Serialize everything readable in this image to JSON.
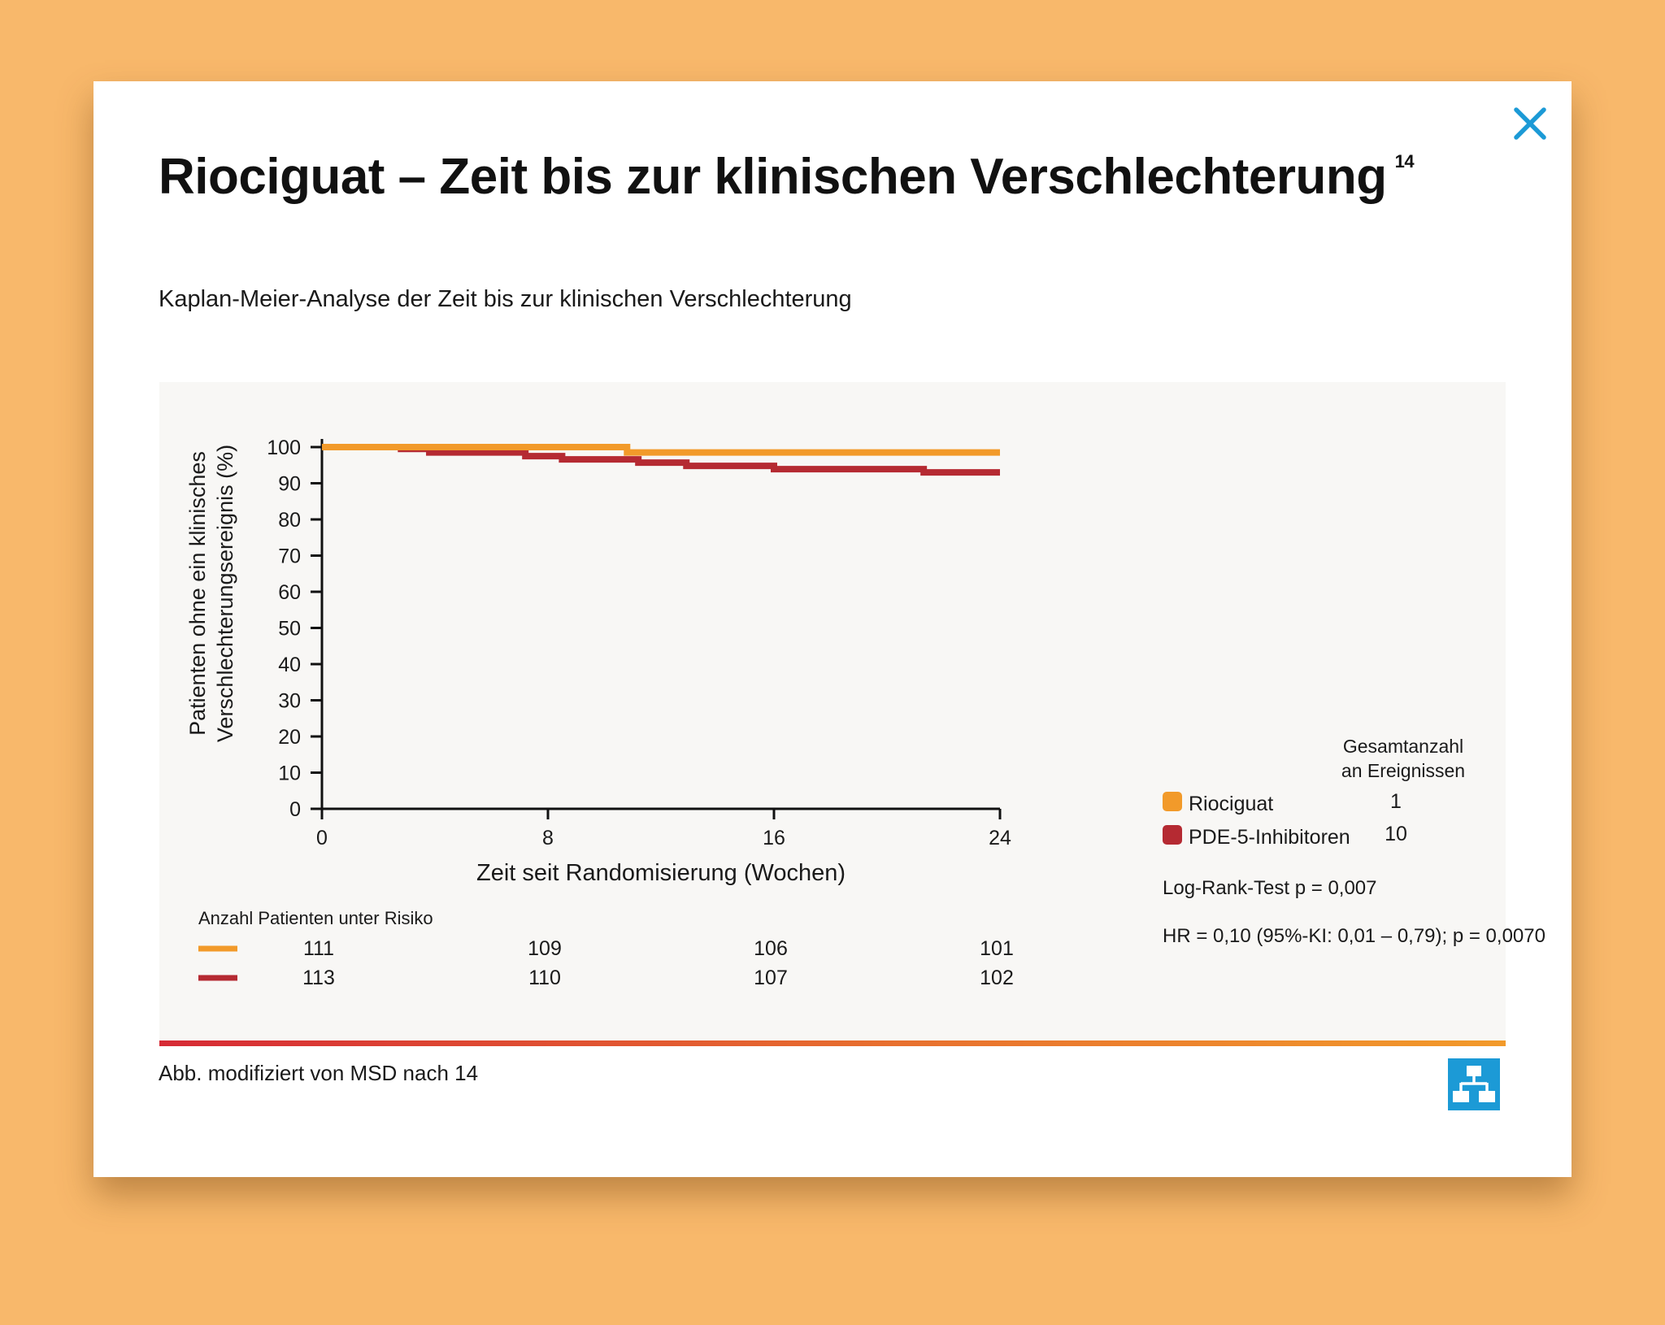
{
  "modal": {
    "title": "Riociguat – Zeit bis zur klinischen Verschlechterung",
    "title_superscript": "14",
    "subtitle": "Kaplan-Meier-Analyse der Zeit bis zur klinischen Verschlechterung",
    "footnote": "Abb. modifiziert von MSD nach 14",
    "close_icon": "close-icon",
    "sitemap_icon": "sitemap-icon"
  },
  "colors": {
    "background": "#f8b86b",
    "accent": "#1c9ad6",
    "riociguat": "#f29a2a",
    "pde5": "#b52a32"
  },
  "chart_data": {
    "type": "line",
    "step": true,
    "xlabel": "Zeit seit Randomisierung (Wochen)",
    "ylabel_lines": [
      "Patienten ohne ein klinisches",
      "Verschlechterungsereignis (%)"
    ],
    "xlim": [
      0,
      24
    ],
    "ylim": [
      0,
      100
    ],
    "xticks": [
      "0",
      "8",
      "16",
      "24"
    ],
    "yticks": [
      "0",
      "10",
      "20",
      "30",
      "40",
      "50",
      "60",
      "70",
      "80",
      "90",
      "100"
    ],
    "legend_header_lines": [
      "Gesamtanzahl",
      "an Ereignissen"
    ],
    "series": [
      {
        "name": "Riociguat",
        "events": "1",
        "color": "#f29a2a",
        "x": [
          0,
          10.8,
          24
        ],
        "y": [
          100,
          98.5,
          98.5
        ],
        "at_risk": [
          "111",
          "109",
          "106",
          "101"
        ]
      },
      {
        "name": "PDE-5-Inhibitoren",
        "events": "10",
        "color": "#b52a32",
        "x": [
          0,
          2.8,
          3.8,
          7.2,
          8.5,
          11.2,
          12.9,
          16,
          21.3,
          24
        ],
        "y": [
          100,
          99.5,
          98.5,
          97.5,
          96.6,
          95.7,
          94.8,
          93.9,
          93.0,
          93.0
        ],
        "at_risk": [
          "113",
          "110",
          "107",
          "102"
        ]
      }
    ],
    "at_risk_title": "Anzahl Patienten unter Risiko",
    "annotations": [
      "Log-Rank-Test p = 0,007",
      "HR = 0,10 (95%-KI: 0,01 – 0,79); p = 0,0070"
    ]
  }
}
